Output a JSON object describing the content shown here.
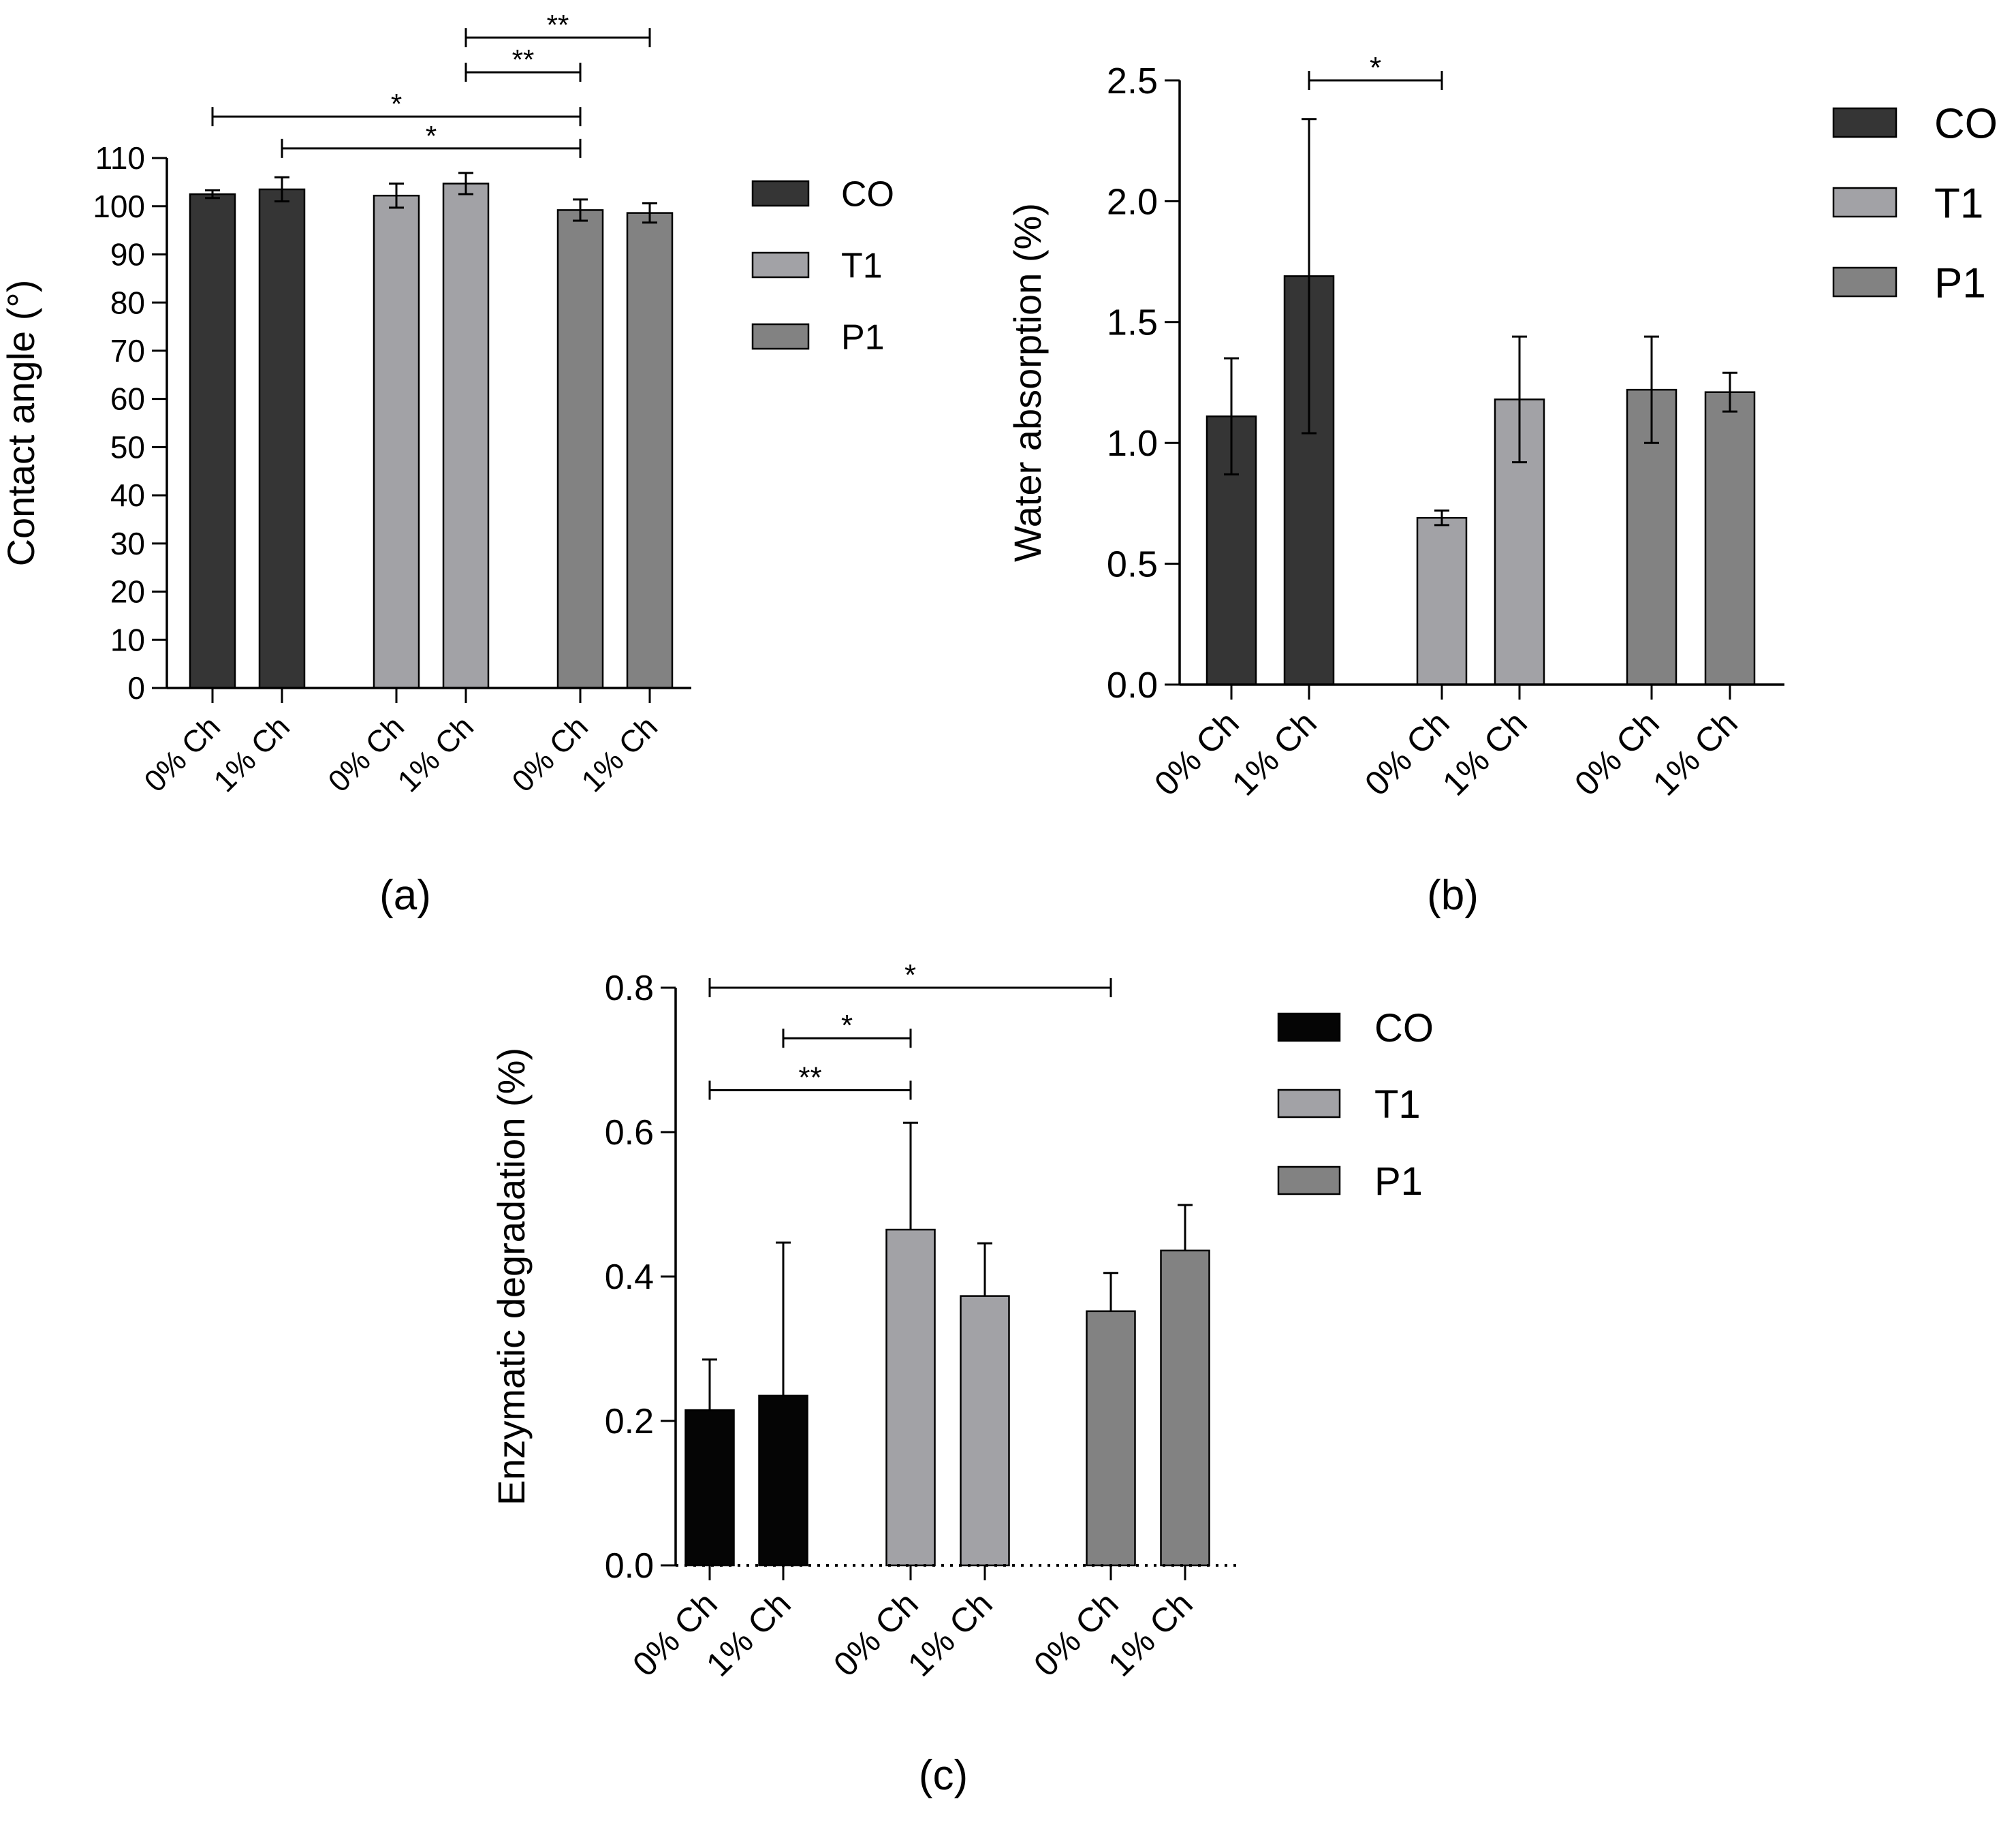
{
  "colors": {
    "CO": "#353535",
    "CO_c": "#050505",
    "T1": "#a2a2a6",
    "P1": "#828282",
    "axis": "#000000"
  },
  "chart_data": [
    {
      "id": "a",
      "type": "bar",
      "panel_label": "(a)",
      "ylabel": "Contact angle (°)",
      "xlabel": "",
      "ylim": [
        0,
        110
      ],
      "yticks": [
        0,
        10,
        20,
        30,
        40,
        50,
        60,
        70,
        80,
        90,
        100,
        110
      ],
      "ytick_labels": [
        "0",
        "10",
        "20",
        "30",
        "40",
        "50",
        "60",
        "70",
        "80",
        "90",
        "100",
        "110"
      ],
      "categories": [
        "0% Ch",
        "1% Ch",
        "0% Ch",
        "1% Ch",
        "0% Ch",
        "1% Ch"
      ],
      "groups": [
        "CO",
        "CO",
        "T1",
        "T1",
        "P1",
        "P1"
      ],
      "values": [
        102.5,
        103.5,
        102.2,
        104.7,
        99.2,
        98.6
      ],
      "errors": [
        0.8,
        2.5,
        2.5,
        2.2,
        2.2,
        2.0
      ],
      "legend": [
        "CO",
        "T1",
        "P1"
      ],
      "legend_position": "right",
      "dotted_baseline": false,
      "significance": [
        {
          "from": 0,
          "to": 4,
          "label": "*",
          "y": 118.6
        },
        {
          "from": 1,
          "to": 4,
          "label": "*",
          "y": 112.0
        },
        {
          "from": 3,
          "to": 4,
          "label": "**",
          "y": 127.8
        },
        {
          "from": 3,
          "to": 5,
          "label": "**",
          "y": 135.0
        }
      ]
    },
    {
      "id": "b",
      "type": "bar",
      "panel_label": "(b)",
      "ylabel": "Water absorption (%)",
      "xlabel": "",
      "ylim": [
        0,
        2.5
      ],
      "yticks": [
        0,
        0.5,
        1.0,
        1.5,
        2.0,
        2.5
      ],
      "ytick_labels": [
        "0.0",
        "0.5",
        "1.0",
        "1.5",
        "2.0",
        "2.5"
      ],
      "categories": [
        "0% Ch",
        "1% Ch",
        "0% Ch",
        "1% Ch",
        "0% Ch",
        "1% Ch"
      ],
      "groups": [
        "CO",
        "CO",
        "T1",
        "T1",
        "P1",
        "P1"
      ],
      "values": [
        1.11,
        1.69,
        0.69,
        1.18,
        1.22,
        1.21
      ],
      "errors": [
        0.24,
        0.65,
        0.03,
        0.26,
        0.22,
        0.08
      ],
      "legend": [
        "CO",
        "T1",
        "P1"
      ],
      "legend_position": "right",
      "dotted_baseline": false,
      "significance": [
        {
          "from": 1,
          "to": 2,
          "label": "*",
          "y": 2.5
        }
      ]
    },
    {
      "id": "c",
      "type": "bar",
      "panel_label": "(c)",
      "ylabel": "Enzymatic degradation (%)",
      "xlabel": "",
      "ylim": [
        0,
        0.8
      ],
      "yticks": [
        0,
        0.2,
        0.4,
        0.6,
        0.8
      ],
      "ytick_labels": [
        "0.0",
        "0.2",
        "0.4",
        "0.6",
        "0.8"
      ],
      "categories": [
        "0% Ch",
        "1% Ch",
        "0% Ch",
        "1% Ch",
        "0% Ch",
        "1% Ch"
      ],
      "groups": [
        "CO_c",
        "CO_c",
        "T1",
        "T1",
        "P1",
        "P1"
      ],
      "values": [
        0.215,
        0.235,
        0.465,
        0.373,
        0.352,
        0.436
      ],
      "errors": [
        0.07,
        0.212,
        0.148,
        0.073,
        0.053,
        0.063
      ],
      "legend": [
        "CO",
        "T1",
        "P1"
      ],
      "legend_colors": [
        "CO_c",
        "T1",
        "P1"
      ],
      "legend_position": "right",
      "dotted_baseline": true,
      "significance": [
        {
          "from": 0,
          "to": 4,
          "label": "*",
          "y": 0.8
        },
        {
          "from": 1,
          "to": 2,
          "label": "*",
          "y": 0.73
        },
        {
          "from": 0,
          "to": 2,
          "label": "**",
          "y": 0.658
        }
      ]
    }
  ]
}
